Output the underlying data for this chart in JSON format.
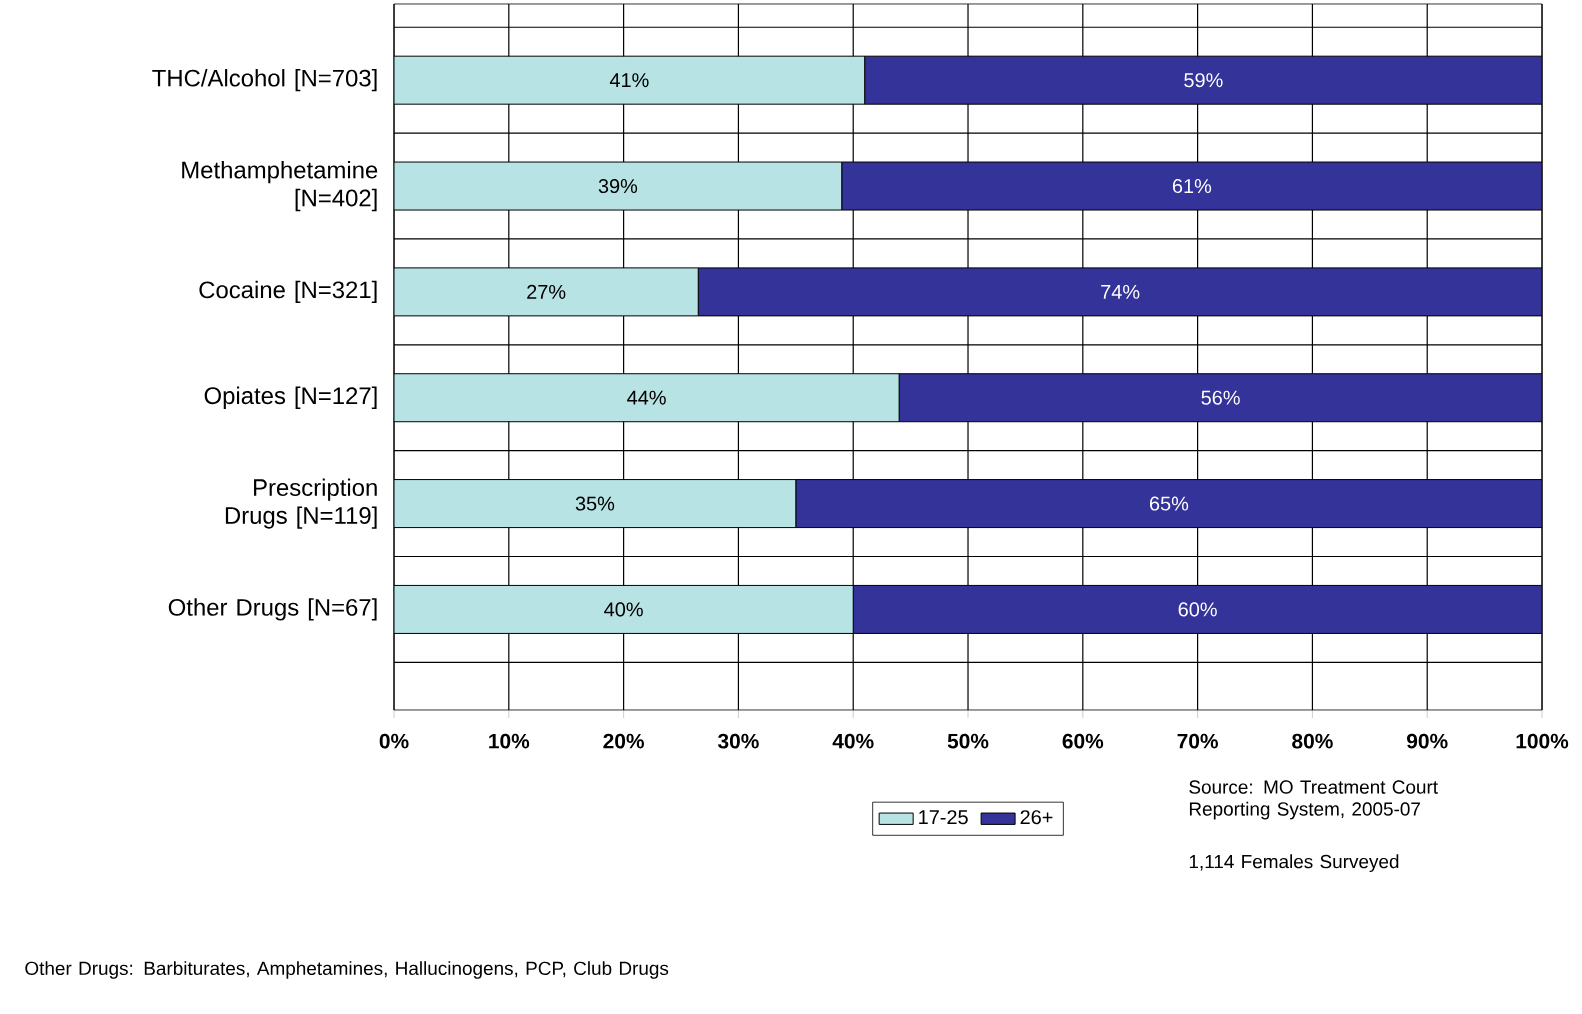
{
  "chart_data": {
    "type": "bar",
    "orientation": "horizontal",
    "stacked": true,
    "categories": [
      "THC/Alcohol [N=703]",
      "Methamphetamine [N=402]",
      "Cocaine [N=321]",
      "Opiates [N=127]",
      "Prescription Drugs [N=119]",
      "Other Drugs [N=67]"
    ],
    "series": [
      {
        "name": "17-25",
        "color": "#b7e3e4",
        "values": [
          41,
          39,
          26.5,
          44,
          35,
          40
        ],
        "value_labels": [
          "41%",
          "39%",
          "27%",
          "44%",
          "35%",
          "40%"
        ]
      },
      {
        "name": "26+",
        "color": "#333399",
        "values": [
          59,
          61,
          73.5,
          56,
          65,
          60
        ],
        "value_labels": [
          "59%",
          "61%",
          "74%",
          "56%",
          "65%",
          "60%"
        ]
      }
    ],
    "xlim": [
      0,
      100
    ],
    "xticks": [
      {
        "value": 0,
        "label": "0%"
      },
      {
        "value": 10,
        "label": "10%"
      },
      {
        "value": 20,
        "label": "20%"
      },
      {
        "value": 30,
        "label": "30%"
      },
      {
        "value": 40,
        "label": "40%"
      },
      {
        "value": 50,
        "label": "50%"
      },
      {
        "value": 60,
        "label": "60%"
      },
      {
        "value": 70,
        "label": "70%"
      },
      {
        "value": 80,
        "label": "80%"
      },
      {
        "value": 90,
        "label": "90%"
      },
      {
        "value": 100,
        "label": "100%"
      }
    ],
    "grid": true,
    "legend": "bottom",
    "annotations": [
      "Source:  MO Treatment Court Reporting System, 2005-07",
      "1,114 Females Surveyed",
      "Other Drugs: Barbiturates, Amphetamines, Hallucinogens, PCP, Club Drugs"
    ]
  }
}
